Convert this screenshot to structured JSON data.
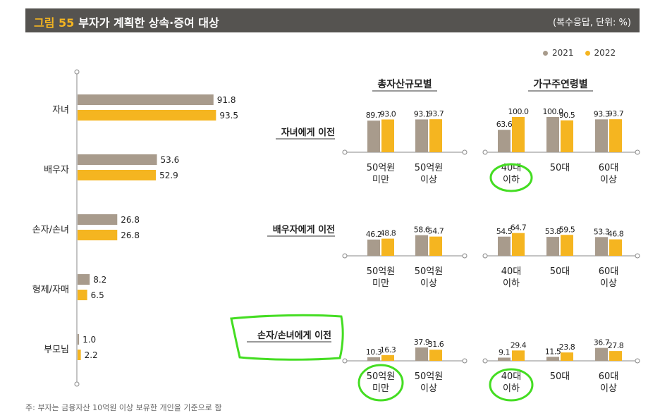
{
  "header": {
    "figure_num": "그림 55",
    "title": "부자가 계획한 상속·증여 대상",
    "unit": "(복수응답, 단위: %)"
  },
  "legend": [
    {
      "label": "2021",
      "color": "#a89b8c"
    },
    {
      "label": "2022",
      "color": "#f5b520"
    }
  ],
  "colors": {
    "y2021": "#a89b8c",
    "y2022": "#f5b520",
    "highlight": "#44dd22"
  },
  "chart_data": [
    {
      "type": "bar",
      "orientation": "horizontal",
      "title": "부자가 계획한 상속·증여 대상",
      "categories": [
        "자녀",
        "배우자",
        "손자/손녀",
        "형제/자매",
        "부모님"
      ],
      "series": [
        {
          "name": "2021",
          "values": [
            91.8,
            53.6,
            26.8,
            8.2,
            1.0
          ]
        },
        {
          "name": "2022",
          "values": [
            93.5,
            52.9,
            26.8,
            6.5,
            2.2
          ]
        }
      ],
      "xlim": [
        0,
        100
      ]
    },
    {
      "type": "bar",
      "group_titles": [
        "총자산규모별",
        "가구주연령별"
      ],
      "row_labels": [
        "자녀에게 이전",
        "배우자에게 이전",
        "손자/손녀에게 이전"
      ],
      "asset_categories": [
        "50억원\n미만",
        "50억원\n이상"
      ],
      "age_categories": [
        "40대\n이하",
        "50대",
        "60대\n이상"
      ],
      "series_names": [
        "2021",
        "2022"
      ],
      "asset_values": [
        [
          [
            89.7,
            93.0
          ],
          [
            93.1,
            93.7
          ]
        ],
        [
          [
            46.2,
            48.8
          ],
          [
            58.6,
            54.7
          ]
        ],
        [
          [
            10.3,
            16.3
          ],
          [
            37.9,
            31.6
          ]
        ]
      ],
      "age_values": [
        [
          [
            63.6,
            100.0
          ],
          [
            100.0,
            90.5
          ],
          [
            93.3,
            93.7
          ]
        ],
        [
          [
            54.5,
            64.7
          ],
          [
            53.8,
            59.5
          ],
          [
            53.3,
            46.8
          ]
        ],
        [
          [
            9.1,
            29.4
          ],
          [
            11.5,
            23.8
          ],
          [
            36.7,
            27.8
          ]
        ]
      ],
      "ylim": [
        0,
        100
      ]
    }
  ],
  "footer": "주: 부자는 금융자산 10억원 이상 보유한 개인을 기준으로 함"
}
